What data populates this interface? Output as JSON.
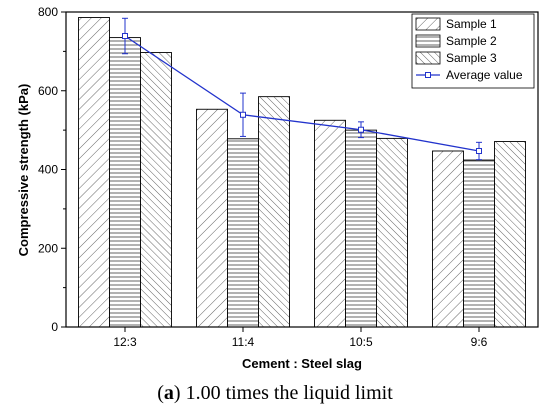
{
  "chart_data": {
    "type": "bar",
    "categories": [
      "12:3",
      "11:4",
      "10:5",
      "9:6"
    ],
    "series": [
      {
        "name": "Sample 1",
        "values": [
          786,
          553,
          525,
          447
        ]
      },
      {
        "name": "Sample 2",
        "values": [
          735,
          478,
          500,
          424
        ]
      },
      {
        "name": "Sample 3",
        "values": [
          697,
          585,
          479,
          471
        ]
      }
    ],
    "line_series": {
      "name": "Average value",
      "values": [
        739,
        539,
        501,
        447
      ],
      "error": [
        45,
        55,
        20,
        22
      ],
      "color": "#2233cc"
    },
    "xlabel": "Cement : Steel slag",
    "ylabel": "Compressive strength (kPa)",
    "ylim": [
      0,
      800
    ],
    "yticks": [
      0,
      200,
      400,
      600,
      800
    ],
    "legend_position": "top-right",
    "grid": false
  },
  "caption": {
    "label": "a",
    "text": " 1.00 times the liquid limit"
  }
}
